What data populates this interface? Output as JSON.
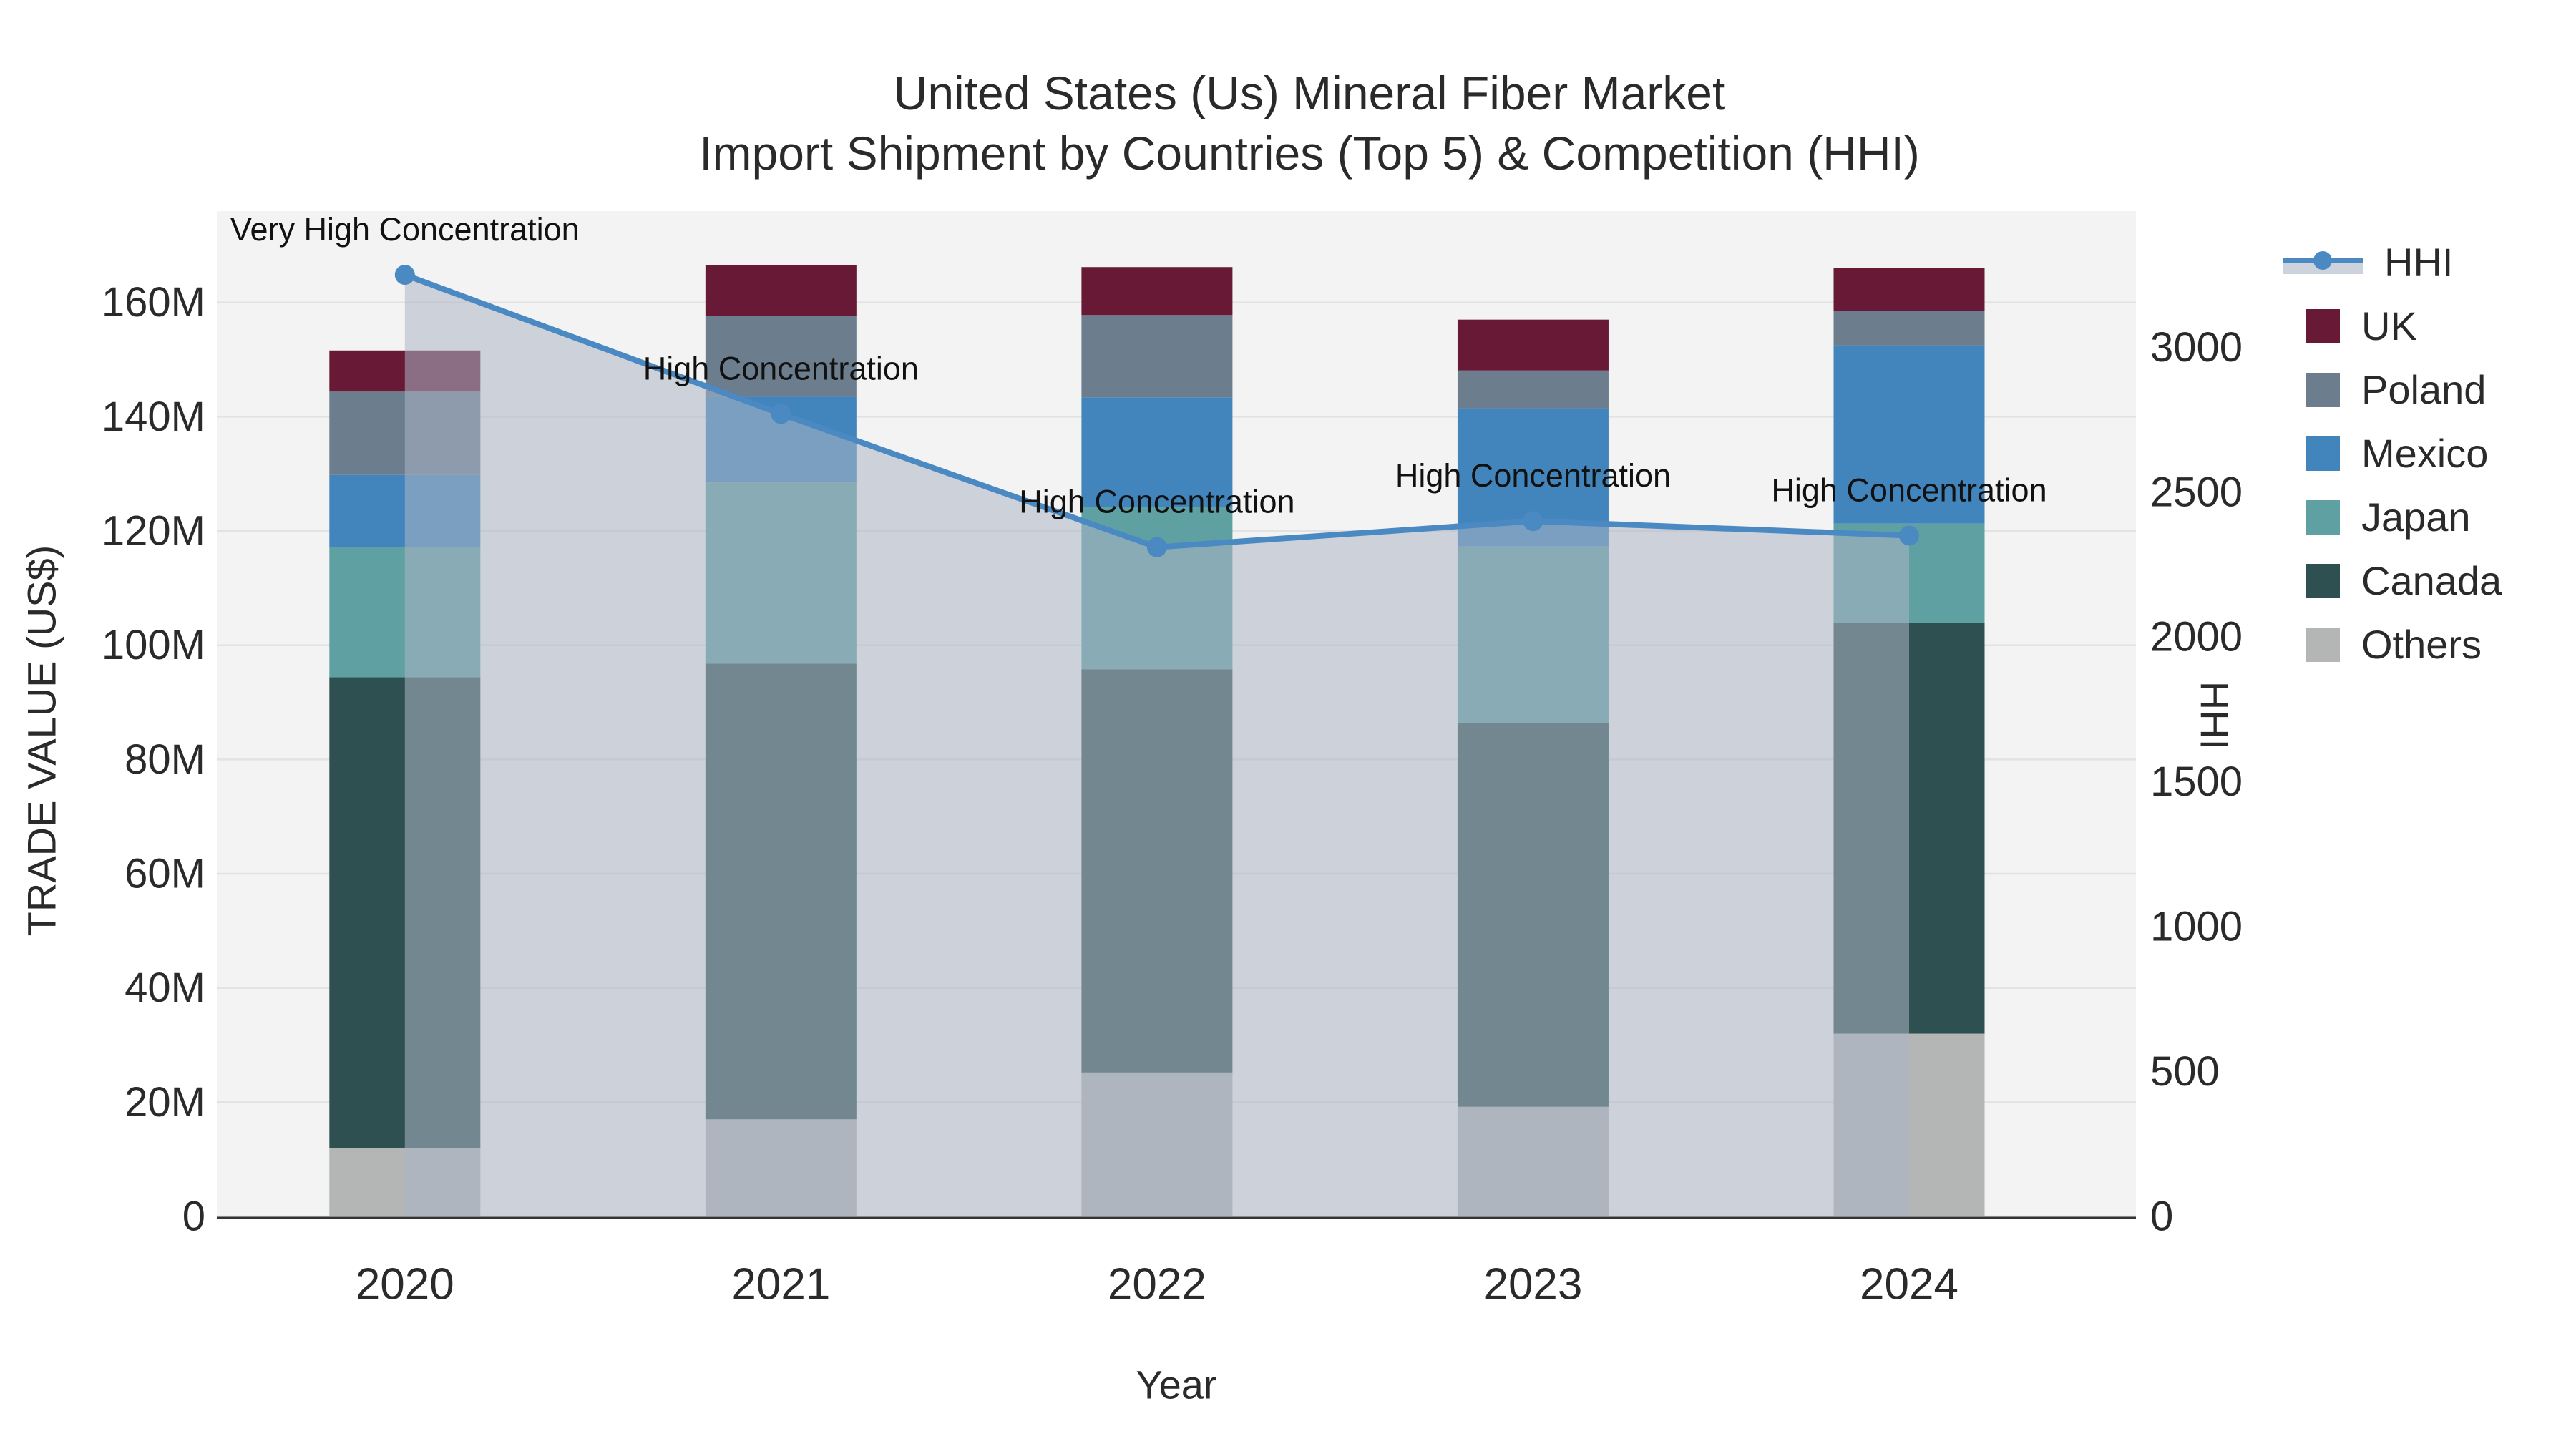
{
  "title": {
    "line1": "United States (Us) Mineral Fiber Market",
    "line2": "Import Shipment by Countries (Top 5) & Competition (HHI)"
  },
  "chart_data": {
    "type": "stacked_bar_with_line",
    "x_categories": [
      "2020",
      "2021",
      "2022",
      "2023",
      "2024"
    ],
    "value_unit": "US$ millions",
    "stack_series_bottom_to_top": [
      {
        "name": "Others",
        "color": "#b3b6b5",
        "values": [
          12.0,
          17.0,
          25.2,
          19.2,
          32.0
        ]
      },
      {
        "name": "Canada",
        "color": "#2e5051",
        "values": [
          82.4,
          79.8,
          70.6,
          67.2,
          71.9
        ]
      },
      {
        "name": "Japan",
        "color": "#5fa1a2",
        "values": [
          22.8,
          31.7,
          28.4,
          30.9,
          17.4
        ]
      },
      {
        "name": "Mexico",
        "color": "#4285bc",
        "values": [
          12.6,
          15.0,
          19.2,
          24.2,
          31.2
        ]
      },
      {
        "name": "Poland",
        "color": "#6c7d8e",
        "values": [
          14.6,
          14.1,
          14.4,
          6.6,
          6.0
        ]
      },
      {
        "name": "UK",
        "color": "#671936",
        "values": [
          7.2,
          8.9,
          8.4,
          8.9,
          7.5
        ]
      }
    ],
    "line_series": {
      "name": "HHI",
      "color": "#4a89c2",
      "area_fill": "rgba(171,180,196,0.55)",
      "values": [
        3250,
        2770,
        2310,
        2400,
        2350
      ]
    },
    "annotations": [
      {
        "x_index": 0,
        "text": "Very High Concentration"
      },
      {
        "x_index": 1,
        "text": "High Concentration"
      },
      {
        "x_index": 2,
        "text": "High Concentration"
      },
      {
        "x_index": 3,
        "text": "High Concentration"
      },
      {
        "x_index": 4,
        "text": "High Concentration"
      }
    ],
    "y_left": {
      "label": "TRADE VALUE (US$)",
      "tick_labels": [
        "0",
        "20M",
        "40M",
        "60M",
        "80M",
        "100M",
        "120M",
        "140M",
        "160M"
      ],
      "tick_values_M": [
        0,
        20,
        40,
        60,
        80,
        100,
        120,
        140,
        160
      ],
      "max_M": 176
    },
    "y_right": {
      "label": "HHI",
      "tick_labels": [
        "0",
        "500",
        "1000",
        "1500",
        "2000",
        "2500",
        "3000"
      ],
      "tick_values": [
        0,
        500,
        1000,
        1500,
        2000,
        2500,
        3000
      ],
      "max": 3470
    },
    "x_axis_label": "Year",
    "legend_order": [
      "HHI",
      "UK",
      "Poland",
      "Mexico",
      "Japan",
      "Canada",
      "Others"
    ]
  }
}
